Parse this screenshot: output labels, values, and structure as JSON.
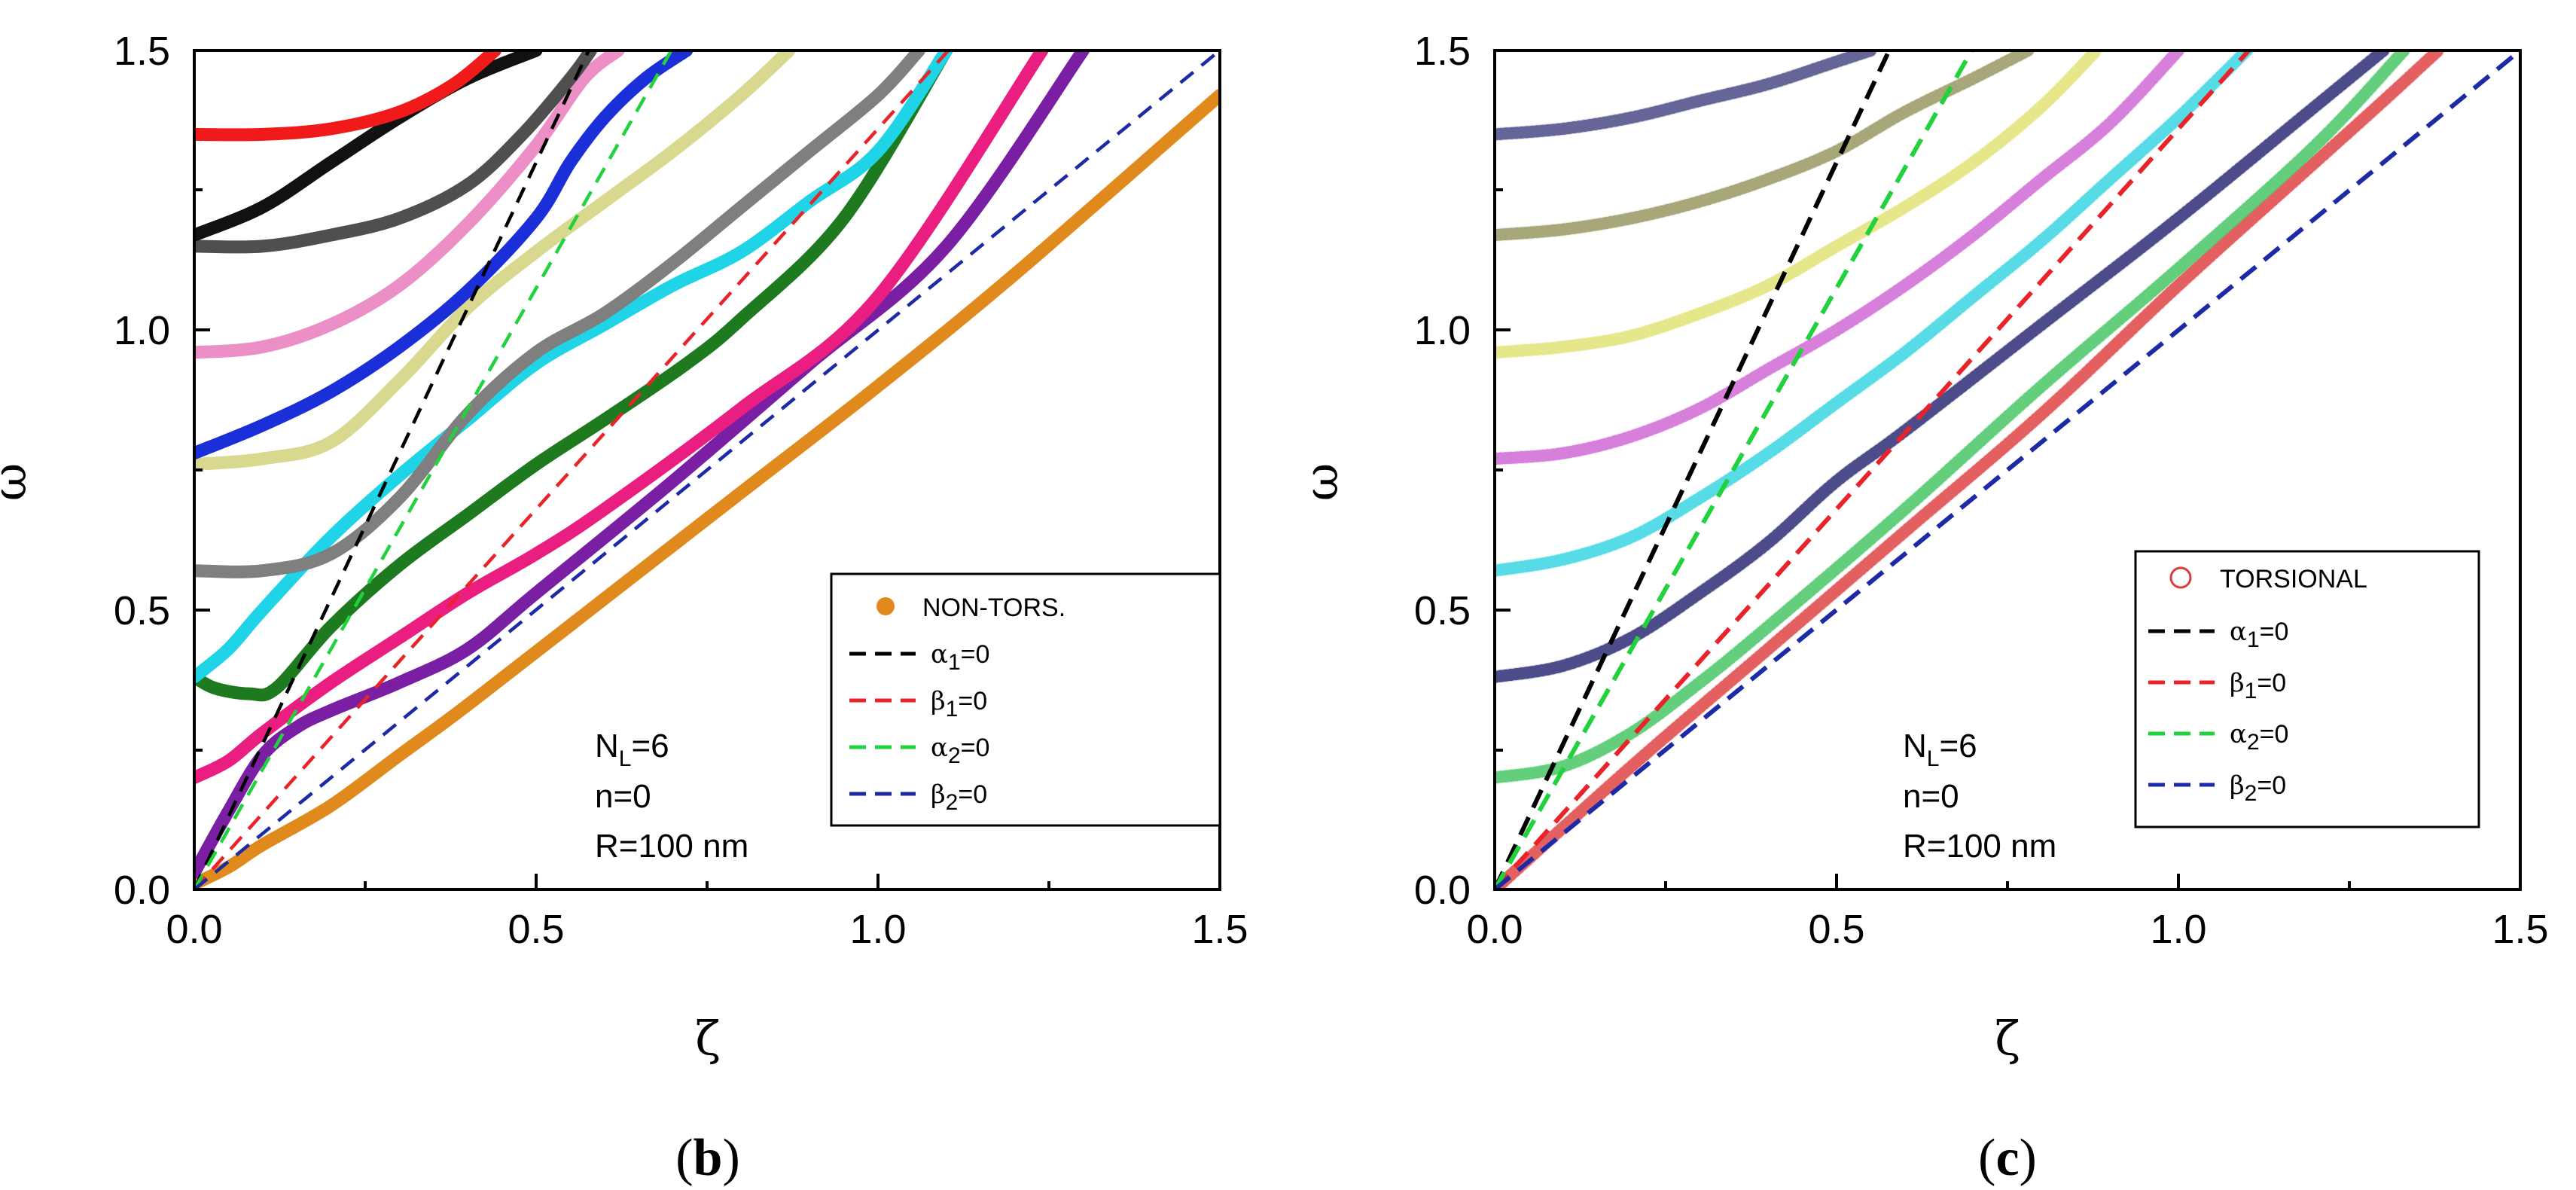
{
  "figure": {
    "panels": [
      {
        "label_open": "(",
        "label_letter": "b",
        "label_close": ")"
      },
      {
        "label_open": "(",
        "label_letter": "c",
        "label_close": ")"
      }
    ]
  },
  "chart_data": [
    {
      "type": "line",
      "panel": "b",
      "xlabel": "ζ",
      "ylabel": "ω",
      "xlim": [
        0,
        1.5
      ],
      "ylim": [
        0,
        1.5
      ],
      "xticks": [
        "0.0",
        "0.5",
        "1.0",
        "1.5"
      ],
      "yticks": [
        "0.0",
        "0.5",
        "1.0",
        "1.5"
      ],
      "annotation": {
        "line1_main": "N",
        "line1_sub": "L",
        "line1_rest": "=6",
        "line2": "n=0",
        "line3": "R=100 nm"
      },
      "legend": {
        "placement": "right",
        "marker_label": "NON-TORS.",
        "marker_color": "#e08a1e",
        "entries": [
          {
            "sym": "α",
            "sub": "1",
            "rest": "=0",
            "color": "#000000"
          },
          {
            "sym": "β",
            "sub": "1",
            "rest": "=0",
            "color": "#e8232a"
          },
          {
            "sym": "α",
            "sub": "2",
            "rest": "=0",
            "color": "#22d23c"
          },
          {
            "sym": "β",
            "sub": "2",
            "rest": "=0",
            "color": "#1c2aa6"
          }
        ]
      },
      "dashed_lines": [
        {
          "name": "alpha1",
          "slope": 2.6,
          "color": "#000000"
        },
        {
          "name": "beta1",
          "slope": 1.36,
          "color": "#e8232a"
        },
        {
          "name": "alpha2",
          "slope": 2.15,
          "color": "#22d23c"
        },
        {
          "name": "beta2",
          "slope": 1.0,
          "color": "#1c2aa6"
        }
      ],
      "series": [
        {
          "name": "orange",
          "color": "#e08a1e",
          "points": [
            [
              0,
              0.01
            ],
            [
              0.05,
              0.04
            ],
            [
              0.1,
              0.08
            ],
            [
              0.2,
              0.15
            ],
            [
              0.3,
              0.24
            ],
            [
              0.4,
              0.33
            ],
            [
              0.6,
              0.52
            ],
            [
              0.8,
              0.71
            ],
            [
              1.0,
              0.9
            ],
            [
              1.2,
              1.1
            ],
            [
              1.5,
              1.42
            ]
          ]
        },
        {
          "name": "purple",
          "color": "#7a1fa3",
          "points": [
            [
              0,
              0.03
            ],
            [
              0.05,
              0.14
            ],
            [
              0.1,
              0.24
            ],
            [
              0.15,
              0.29
            ],
            [
              0.2,
              0.32
            ],
            [
              0.3,
              0.37
            ],
            [
              0.4,
              0.43
            ],
            [
              0.5,
              0.53
            ],
            [
              0.7,
              0.73
            ],
            [
              0.9,
              0.94
            ],
            [
              1.1,
              1.15
            ],
            [
              1.3,
              1.5
            ]
          ]
        },
        {
          "name": "magenta",
          "color": "#ea1e80",
          "points": [
            [
              0,
              0.2
            ],
            [
              0.05,
              0.23
            ],
            [
              0.1,
              0.28
            ],
            [
              0.2,
              0.37
            ],
            [
              0.3,
              0.45
            ],
            [
              0.4,
              0.53
            ],
            [
              0.5,
              0.6
            ],
            [
              0.6,
              0.68
            ],
            [
              0.8,
              0.86
            ],
            [
              1.0,
              1.06
            ],
            [
              1.24,
              1.5
            ]
          ]
        },
        {
          "name": "darkgreen",
          "color": "#1d7a1f",
          "points": [
            [
              0,
              0.38
            ],
            [
              0.03,
              0.36
            ],
            [
              0.08,
              0.35
            ],
            [
              0.12,
              0.36
            ],
            [
              0.2,
              0.47
            ],
            [
              0.3,
              0.58
            ],
            [
              0.4,
              0.67
            ],
            [
              0.5,
              0.76
            ],
            [
              0.6,
              0.84
            ],
            [
              0.72,
              0.94
            ],
            [
              0.8,
              1.02
            ],
            [
              0.95,
              1.2
            ],
            [
              1.1,
              1.5
            ]
          ]
        },
        {
          "name": "cyan",
          "color": "#1ed4e6",
          "points": [
            [
              0,
              0.38
            ],
            [
              0.05,
              0.43
            ],
            [
              0.1,
              0.5
            ],
            [
              0.2,
              0.63
            ],
            [
              0.3,
              0.74
            ],
            [
              0.4,
              0.84
            ],
            [
              0.5,
              0.94
            ],
            [
              0.6,
              1.01
            ],
            [
              0.7,
              1.08
            ],
            [
              0.8,
              1.14
            ],
            [
              0.9,
              1.23
            ],
            [
              1.0,
              1.32
            ],
            [
              1.1,
              1.5
            ]
          ]
        },
        {
          "name": "gray",
          "color": "#7f7f7f",
          "points": [
            [
              0,
              0.57
            ],
            [
              0.1,
              0.57
            ],
            [
              0.2,
              0.6
            ],
            [
              0.3,
              0.7
            ],
            [
              0.4,
              0.85
            ],
            [
              0.5,
              0.96
            ],
            [
              0.6,
              1.03
            ],
            [
              0.7,
              1.12
            ],
            [
              0.8,
              1.22
            ],
            [
              0.9,
              1.32
            ],
            [
              1.0,
              1.42
            ],
            [
              1.06,
              1.5
            ]
          ]
        },
        {
          "name": "khaki",
          "color": "#d8d88f",
          "points": [
            [
              0,
              0.76
            ],
            [
              0.1,
              0.77
            ],
            [
              0.2,
              0.8
            ],
            [
              0.3,
              0.91
            ],
            [
              0.4,
              1.04
            ],
            [
              0.5,
              1.14
            ],
            [
              0.6,
              1.23
            ],
            [
              0.7,
              1.32
            ],
            [
              0.8,
              1.42
            ],
            [
              0.87,
              1.5
            ]
          ]
        },
        {
          "name": "blue",
          "color": "#1a2fd8",
          "points": [
            [
              0,
              0.78
            ],
            [
              0.1,
              0.83
            ],
            [
              0.2,
              0.89
            ],
            [
              0.3,
              0.97
            ],
            [
              0.4,
              1.07
            ],
            [
              0.5,
              1.2
            ],
            [
              0.55,
              1.3
            ],
            [
              0.6,
              1.38
            ],
            [
              0.66,
              1.45
            ],
            [
              0.72,
              1.5
            ]
          ]
        },
        {
          "name": "pink",
          "color": "#ec8fc6",
          "points": [
            [
              0,
              0.96
            ],
            [
              0.1,
              0.97
            ],
            [
              0.2,
              1.01
            ],
            [
              0.3,
              1.08
            ],
            [
              0.4,
              1.19
            ],
            [
              0.5,
              1.33
            ],
            [
              0.57,
              1.45
            ],
            [
              0.62,
              1.5
            ]
          ]
        },
        {
          "name": "darkgray",
          "color": "#4f4f4f",
          "points": [
            [
              0,
              1.15
            ],
            [
              0.1,
              1.15
            ],
            [
              0.2,
              1.17
            ],
            [
              0.3,
              1.2
            ],
            [
              0.4,
              1.26
            ],
            [
              0.48,
              1.35
            ],
            [
              0.55,
              1.45
            ],
            [
              0.58,
              1.5
            ]
          ]
        },
        {
          "name": "black",
          "color": "#111111",
          "points": [
            [
              0,
              1.17
            ],
            [
              0.1,
              1.22
            ],
            [
              0.2,
              1.3
            ],
            [
              0.3,
              1.38
            ],
            [
              0.4,
              1.45
            ],
            [
              0.5,
              1.5
            ]
          ]
        },
        {
          "name": "red",
          "color": "#f01a1a",
          "points": [
            [
              0,
              1.35
            ],
            [
              0.1,
              1.35
            ],
            [
              0.2,
              1.36
            ],
            [
              0.3,
              1.39
            ],
            [
              0.38,
              1.44
            ],
            [
              0.44,
              1.5
            ]
          ]
        }
      ]
    },
    {
      "type": "scatter",
      "panel": "c",
      "xlabel": "ζ",
      "ylabel": "ω",
      "xlim": [
        0,
        1.5
      ],
      "ylim": [
        0,
        1.5
      ],
      "xticks": [
        "0.0",
        "0.5",
        "1.0",
        "1.5"
      ],
      "yticks": [
        "0.0",
        "0.5",
        "1.0",
        "1.5"
      ],
      "annotation": {
        "line1_main": "N",
        "line1_sub": "L",
        "line1_rest": "=6",
        "line2": "n=0",
        "line3": "R=100 nm"
      },
      "legend": {
        "placement": "right",
        "marker_label": "TORSIONAL",
        "marker_color": "#e23a3a",
        "entries": [
          {
            "sym": "α",
            "sub": "1",
            "rest": "=0",
            "color": "#000000"
          },
          {
            "sym": "β",
            "sub": "1",
            "rest": "=0",
            "color": "#e8232a"
          },
          {
            "sym": "α",
            "sub": "2",
            "rest": "=0",
            "color": "#22d23c"
          },
          {
            "sym": "β",
            "sub": "2",
            "rest": "=0",
            "color": "#1c2aa6"
          }
        ]
      },
      "dashed_lines": [
        {
          "name": "alpha1",
          "slope": 2.6,
          "color": "#000000"
        },
        {
          "name": "beta1",
          "slope": 1.36,
          "color": "#e8232a"
        },
        {
          "name": "alpha2",
          "slope": 2.15,
          "color": "#22d23c"
        },
        {
          "name": "beta2",
          "slope": 1.0,
          "color": "#1c2aa6"
        }
      ],
      "series": [
        {
          "name": "red-ring",
          "color": "#e04a4a",
          "points": [
            [
              0,
              0
            ],
            [
              0.2,
              0.22
            ],
            [
              0.4,
              0.43
            ],
            [
              0.6,
              0.64
            ],
            [
              0.8,
              0.85
            ],
            [
              1.0,
              1.08
            ],
            [
              1.2,
              1.3
            ],
            [
              1.3,
              1.41
            ],
            [
              1.38,
              1.5
            ]
          ]
        },
        {
          "name": "green-ring",
          "color": "#4ec86a",
          "points": [
            [
              0,
              0.2
            ],
            [
              0.1,
              0.22
            ],
            [
              0.2,
              0.28
            ],
            [
              0.3,
              0.37
            ],
            [
              0.4,
              0.47
            ],
            [
              0.6,
              0.68
            ],
            [
              0.8,
              0.9
            ],
            [
              1.0,
              1.11
            ],
            [
              1.2,
              1.33
            ],
            [
              1.33,
              1.5
            ]
          ]
        },
        {
          "name": "navy-ring",
          "color": "#33337a",
          "points": [
            [
              0,
              0.38
            ],
            [
              0.1,
              0.4
            ],
            [
              0.2,
              0.45
            ],
            [
              0.3,
              0.53
            ],
            [
              0.4,
              0.62
            ],
            [
              0.5,
              0.73
            ],
            [
              0.6,
              0.82
            ],
            [
              0.8,
              1.01
            ],
            [
              1.0,
              1.2
            ],
            [
              1.2,
              1.4
            ],
            [
              1.3,
              1.5
            ]
          ]
        },
        {
          "name": "cyan-ring",
          "color": "#3ed6e3",
          "points": [
            [
              0,
              0.57
            ],
            [
              0.1,
              0.59
            ],
            [
              0.2,
              0.63
            ],
            [
              0.3,
              0.7
            ],
            [
              0.4,
              0.78
            ],
            [
              0.5,
              0.87
            ],
            [
              0.6,
              0.96
            ],
            [
              0.7,
              1.06
            ],
            [
              0.8,
              1.16
            ],
            [
              0.9,
              1.27
            ],
            [
              1.0,
              1.38
            ],
            [
              1.1,
              1.5
            ]
          ]
        },
        {
          "name": "violet-ring",
          "color": "#d16fd6",
          "points": [
            [
              0,
              0.77
            ],
            [
              0.1,
              0.78
            ],
            [
              0.2,
              0.81
            ],
            [
              0.3,
              0.86
            ],
            [
              0.4,
              0.93
            ],
            [
              0.5,
              1.0
            ],
            [
              0.6,
              1.08
            ],
            [
              0.7,
              1.17
            ],
            [
              0.8,
              1.27
            ],
            [
              0.9,
              1.37
            ],
            [
              1.0,
              1.5
            ]
          ]
        },
        {
          "name": "yellow-ring",
          "color": "#e2e27a",
          "points": [
            [
              0,
              0.96
            ],
            [
              0.1,
              0.97
            ],
            [
              0.2,
              0.99
            ],
            [
              0.3,
              1.03
            ],
            [
              0.4,
              1.08
            ],
            [
              0.5,
              1.15
            ],
            [
              0.6,
              1.22
            ],
            [
              0.7,
              1.3
            ],
            [
              0.8,
              1.4
            ],
            [
              0.88,
              1.5
            ]
          ]
        },
        {
          "name": "olive-ring",
          "color": "#9a9a66",
          "points": [
            [
              0,
              1.17
            ],
            [
              0.1,
              1.18
            ],
            [
              0.2,
              1.2
            ],
            [
              0.3,
              1.23
            ],
            [
              0.4,
              1.27
            ],
            [
              0.5,
              1.32
            ],
            [
              0.6,
              1.39
            ],
            [
              0.7,
              1.45
            ],
            [
              0.78,
              1.5
            ]
          ]
        },
        {
          "name": "slate-ring",
          "color": "#50508a",
          "points": [
            [
              0,
              1.35
            ],
            [
              0.1,
              1.36
            ],
            [
              0.2,
              1.38
            ],
            [
              0.3,
              1.41
            ],
            [
              0.4,
              1.44
            ],
            [
              0.5,
              1.48
            ],
            [
              0.55,
              1.5
            ]
          ]
        }
      ]
    }
  ]
}
